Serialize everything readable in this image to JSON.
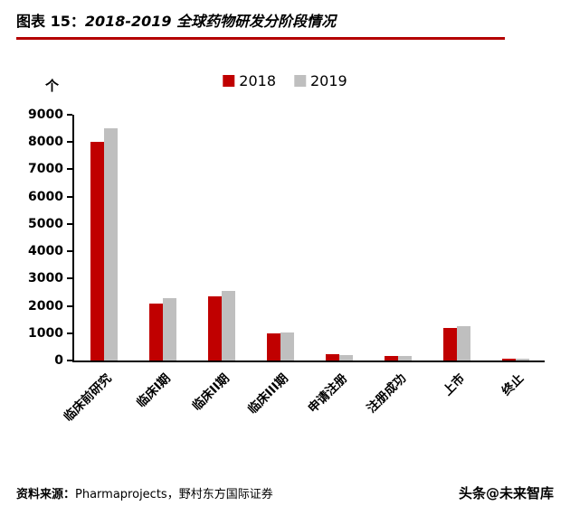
{
  "header": {
    "title_prefix": "图表 15：",
    "title_text": "2018-2019 全球药物研发分阶段情况",
    "underline_color": "#b40000"
  },
  "chart_data": {
    "type": "bar",
    "title": "2018-2019 全球药物研发分阶段情况",
    "unit_label": "个",
    "categories": [
      "临床前研究",
      "临床I期",
      "临床II期",
      "临床III期",
      "申请注册",
      "注册成功",
      "上市",
      "终止"
    ],
    "series": [
      {
        "name": "2018",
        "color": "#c00000",
        "values": [
          8000,
          2100,
          2350,
          1000,
          220,
          160,
          1200,
          60
        ]
      },
      {
        "name": "2019",
        "color": "#bfbfbf",
        "values": [
          8500,
          2280,
          2560,
          1030,
          190,
          150,
          1270,
          40
        ]
      }
    ],
    "ylim": [
      0,
      9000
    ],
    "ytick_step": 1000,
    "grid": false,
    "legend_position": "top"
  },
  "footer": {
    "source_label": "资料来源：",
    "source_text": "Pharmaprojects，野村东方国际证券",
    "watermark": "头条@未来智库"
  }
}
